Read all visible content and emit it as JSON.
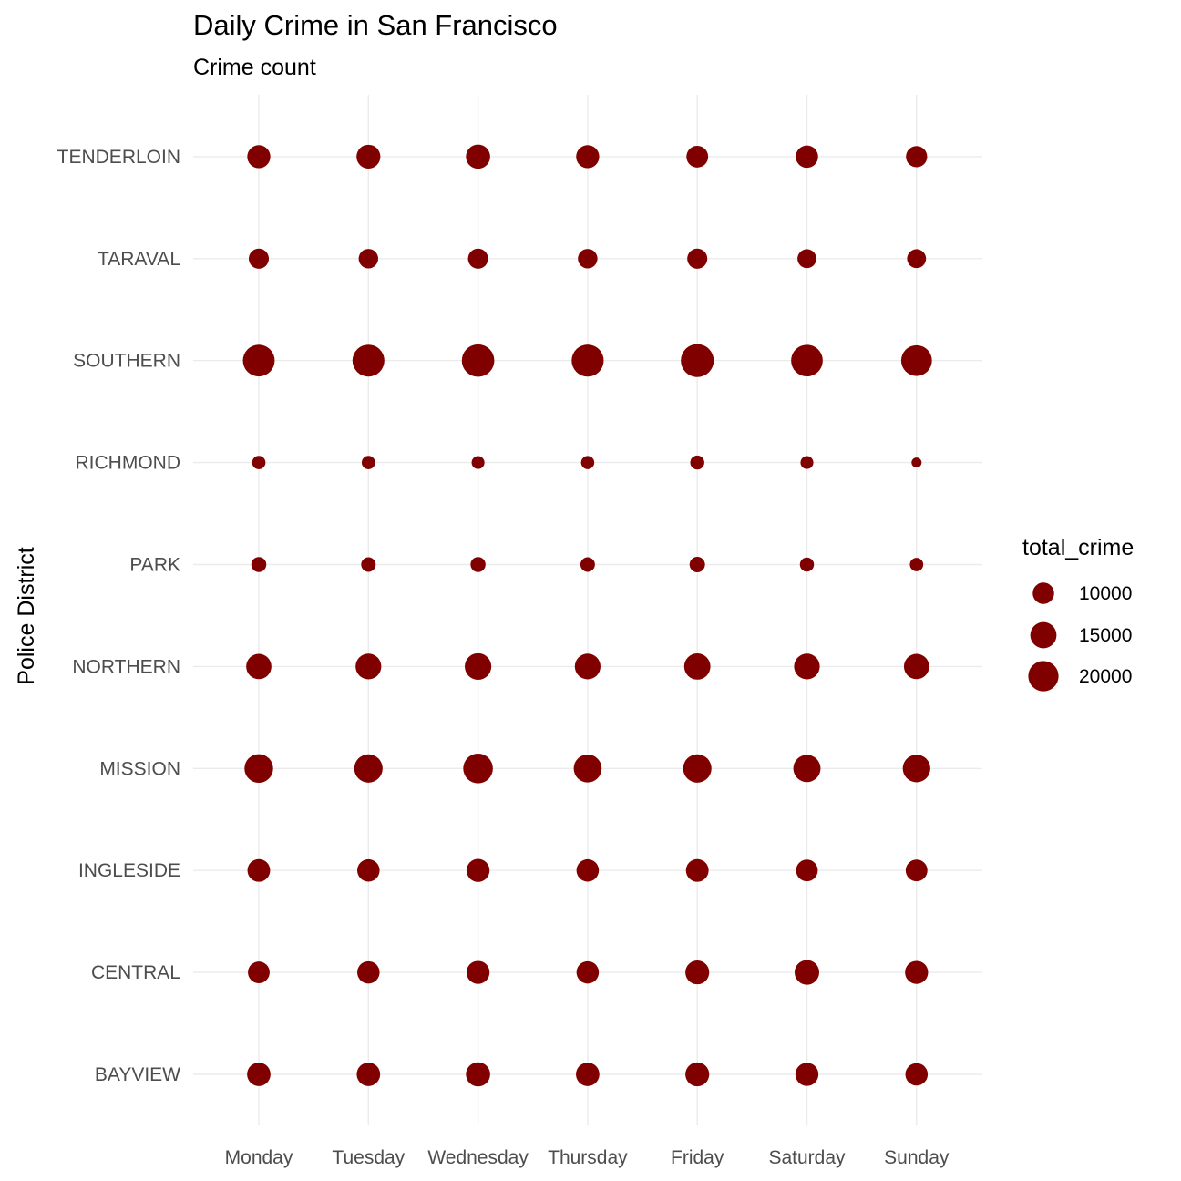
{
  "chart_data": {
    "type": "scatter",
    "title": "Daily Crime in San Francisco",
    "subtitle": "Crime count",
    "xlabel": "",
    "ylabel": "Police District",
    "x_categories": [
      "Monday",
      "Tuesday",
      "Wednesday",
      "Thursday",
      "Friday",
      "Saturday",
      "Sunday"
    ],
    "y_categories": [
      "BAYVIEW",
      "CENTRAL",
      "INGLESIDE",
      "MISSION",
      "NORTHERN",
      "PARK",
      "RICHMOND",
      "SOUTHERN",
      "TARAVAL",
      "TENDERLOIN"
    ],
    "size_variable": "total_crime",
    "legend": {
      "title": "total_crime",
      "position": "right",
      "breaks": [
        10000,
        15000,
        20000
      ]
    },
    "point_color": "#800000",
    "grid": true,
    "points": [
      {
        "district": "BAYVIEW",
        "values": [
          12000,
          12000,
          12800,
          12000,
          12400,
          11600,
          10900
        ]
      },
      {
        "district": "CENTRAL",
        "values": [
          10300,
          10900,
          11600,
          10900,
          12400,
          13200,
          11600
        ]
      },
      {
        "district": "INGLESIDE",
        "values": [
          11200,
          10900,
          11600,
          10900,
          11200,
          10300,
          10300
        ]
      },
      {
        "district": "MISSION",
        "values": [
          17900,
          17500,
          19200,
          17000,
          17500,
          16200,
          16600
        ]
      },
      {
        "district": "NORTHERN",
        "values": [
          13900,
          14400,
          15400,
          14400,
          15000,
          14400,
          13900
        ]
      },
      {
        "district": "PARK",
        "values": [
          4900,
          4600,
          4900,
          4600,
          5200,
          4300,
          3900
        ]
      },
      {
        "district": "RICHMOND",
        "values": [
          3900,
          3900,
          3600,
          3800,
          4300,
          3600,
          2200
        ]
      },
      {
        "district": "SOUTHERN",
        "values": [
          22000,
          22200,
          23000,
          22400,
          23600,
          21800,
          20600
        ]
      },
      {
        "district": "TARAVAL",
        "values": [
          8800,
          8300,
          8800,
          8300,
          8800,
          7800,
          7800
        ]
      },
      {
        "district": "TENDERLOIN",
        "values": [
          11600,
          12400,
          12800,
          11600,
          10300,
          10900,
          9800
        ]
      }
    ]
  }
}
